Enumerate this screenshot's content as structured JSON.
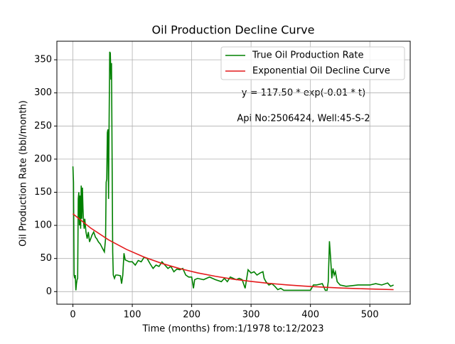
{
  "chart_data": {
    "type": "line",
    "title": "Oil Production Decline Curve",
    "xlabel": "Time (months) from:1/1978 to:12/2023",
    "ylabel": "Oil Production Rate (bbl/month)",
    "annotations": [
      "y = 117.50 * exp(-0.01 * t)",
      "Api No:2506424, Well:45-S-2"
    ],
    "xlim": [
      -27,
      568
    ],
    "ylim": [
      -19,
      378
    ],
    "xticks": [
      0,
      100,
      200,
      300,
      400,
      500
    ],
    "yticks": [
      0,
      50,
      100,
      150,
      200,
      250,
      300,
      350
    ],
    "grid": true,
    "legend": "upper right",
    "series": [
      {
        "name": "True Oil Production Rate",
        "color": "#008000",
        "x": [
          0,
          1,
          2,
          3,
          4,
          5,
          6,
          7,
          8,
          9,
          10,
          11,
          12,
          13,
          14,
          15,
          16,
          17,
          18,
          19,
          20,
          22,
          24,
          26,
          28,
          30,
          32,
          35,
          38,
          40,
          43,
          46,
          50,
          53,
          55,
          56,
          57,
          58,
          59,
          60,
          61,
          62,
          63,
          64,
          65,
          66,
          67,
          68,
          70,
          72,
          75,
          80,
          82,
          84,
          86,
          88,
          95,
          100,
          105,
          110,
          115,
          120,
          125,
          130,
          135,
          140,
          145,
          150,
          155,
          160,
          165,
          170,
          175,
          180,
          185,
          190,
          195,
          200,
          203,
          205,
          210,
          220,
          230,
          240,
          250,
          255,
          260,
          265,
          270,
          275,
          280,
          285,
          290,
          295,
          300,
          305,
          310,
          315,
          320,
          322,
          325,
          330,
          335,
          340,
          345,
          350,
          355,
          360,
          370,
          380,
          390,
          400,
          405,
          410,
          420,
          425,
          428,
          430,
          432,
          434,
          436,
          438,
          440,
          442,
          445,
          450,
          460,
          470,
          480,
          490,
          500,
          510,
          520,
          530,
          535,
          540
        ],
        "values": [
          189,
          165,
          25,
          20,
          25,
          2,
          12,
          18,
          20,
          140,
          150,
          100,
          145,
          95,
          160,
          110,
          157,
          125,
          105,
          95,
          110,
          90,
          80,
          90,
          75,
          80,
          85,
          90,
          82,
          80,
          75,
          72,
          65,
          60,
          80,
          165,
          170,
          240,
          245,
          140,
          260,
          362,
          360,
          320,
          345,
          200,
          60,
          25,
          20,
          25,
          25,
          24,
          12,
          25,
          58,
          48,
          45,
          45,
          40,
          47,
          45,
          52,
          50,
          42,
          35,
          40,
          38,
          45,
          40,
          35,
          38,
          30,
          34,
          33,
          35,
          25,
          22,
          22,
          5,
          18,
          20,
          18,
          22,
          18,
          15,
          20,
          15,
          22,
          20,
          18,
          20,
          18,
          5,
          33,
          28,
          30,
          25,
          28,
          30,
          20,
          15,
          10,
          12,
          8,
          3,
          5,
          2,
          2,
          2,
          2,
          2,
          2,
          10,
          10,
          12,
          2,
          2,
          15,
          76,
          50,
          20,
          35,
          25,
          30,
          15,
          10,
          8,
          9,
          10,
          10,
          10,
          12,
          10,
          13,
          8,
          10
        ]
      },
      {
        "name": "Exponential Oil Decline Curve",
        "color": "#e41a1c",
        "x": [
          0,
          30,
          60,
          90,
          120,
          150,
          180,
          210,
          240,
          270,
          300,
          330,
          360,
          390,
          420,
          450,
          480,
          510,
          540
        ],
        "values": [
          117.5,
          95.9,
          78.2,
          63.8,
          52.1,
          42.5,
          34.7,
          28.3,
          23.1,
          18.8,
          15.4,
          12.5,
          10.2,
          8.3,
          6.8,
          5.5,
          4.5,
          3.7,
          3.0
        ]
      }
    ]
  }
}
